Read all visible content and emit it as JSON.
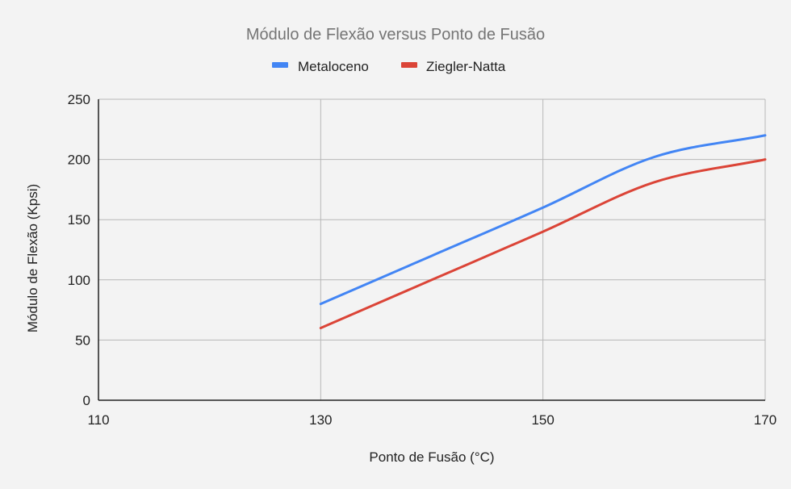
{
  "chart_data": {
    "type": "line",
    "title": "Módulo de Flexão versus Ponto de Fusão",
    "xlabel": "Ponto de Fusão (°C)",
    "ylabel": "Módulo de Flexão (Kpsi)",
    "xlim": [
      110,
      170
    ],
    "ylim": [
      0,
      250
    ],
    "x_ticks": [
      "110",
      "130",
      "150",
      "170"
    ],
    "y_ticks": [
      "0",
      "50",
      "100",
      "150",
      "200",
      "250"
    ],
    "grid": true,
    "legend_position": "top",
    "series": [
      {
        "name": "Metaloceno",
        "color": "#4285f4",
        "points": [
          {
            "x": 130,
            "y": 80
          },
          {
            "x": 140,
            "y": 120
          },
          {
            "x": 150,
            "y": 160
          },
          {
            "x": 160,
            "y": 202
          },
          {
            "x": 170,
            "y": 220
          }
        ]
      },
      {
        "name": "Ziegler-Natta",
        "color": "#db4437",
        "points": [
          {
            "x": 130,
            "y": 60
          },
          {
            "x": 140,
            "y": 100
          },
          {
            "x": 150,
            "y": 140
          },
          {
            "x": 160,
            "y": 181
          },
          {
            "x": 170,
            "y": 200
          }
        ]
      }
    ]
  }
}
